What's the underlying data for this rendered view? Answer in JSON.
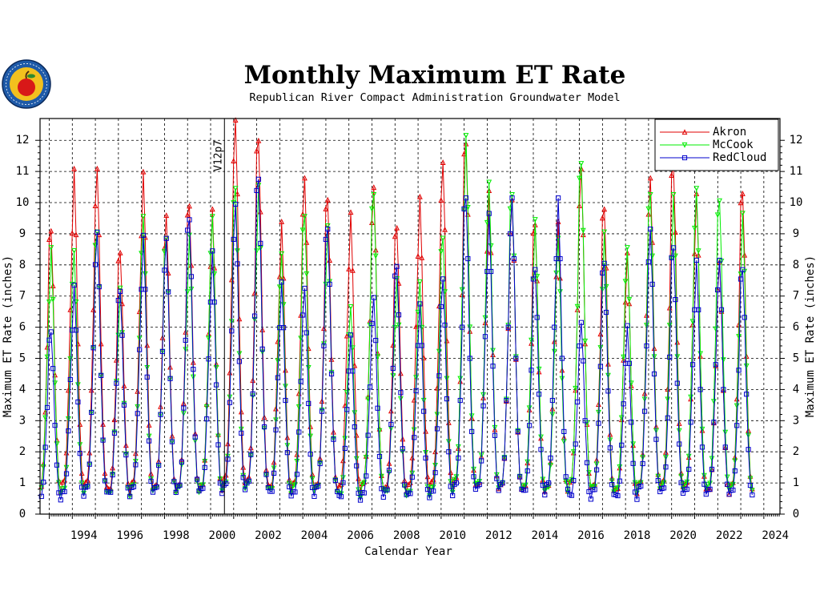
{
  "chart_data": {
    "type": "line",
    "title": "Monthly Maximum ET Rate",
    "subtitle": "Republican River Compact Administration Groundwater Model",
    "xlabel": "Calendar Year",
    "ylabel": "Maximum ET Rate (inches)",
    "xlim": [
      1992.6,
      2024.7
    ],
    "ylim": [
      0,
      12.7
    ],
    "x_ticks": [
      "1994",
      "1996",
      "1998",
      "2000",
      "2002",
      "2004",
      "2006",
      "2008",
      "2010",
      "2012",
      "2014",
      "2016",
      "2018",
      "2020",
      "2022",
      "2024"
    ],
    "y_ticks": [
      "0",
      "1",
      "2",
      "3",
      "4",
      "5",
      "6",
      "7",
      "8",
      "9",
      "10",
      "11",
      "12"
    ],
    "grid": true,
    "legend_position": "top-right",
    "annotation": {
      "text": "V12p7",
      "x": 2000.6
    },
    "x_start_year": 1992,
    "series": [
      {
        "name": "Akron",
        "color": "#e00000",
        "marker": "triangle-up",
        "peaks": [
          9.0,
          11.0,
          11.0,
          8.3,
          10.9,
          9.5,
          9.8,
          9.7,
          12.6,
          11.9,
          9.3,
          10.7,
          10.0,
          9.6,
          10.4,
          9.1,
          10.1,
          11.2,
          11.8,
          10.3,
          10.0,
          9.2,
          9.3,
          11.0,
          9.7,
          8.3,
          10.7,
          11.1,
          10.2,
          8.0,
          10.2
        ]
      },
      {
        "name": "McCook",
        "color": "#00ee00",
        "marker": "triangle-down",
        "peaks": [
          8.3,
          8.2,
          8.8,
          7.0,
          9.3,
          8.6,
          8.7,
          9.3,
          10.2,
          10.3,
          8.1,
          9.3,
          9.0,
          6.4,
          10.0,
          7.3,
          7.2,
          8.6,
          11.9,
          10.4,
          10.0,
          9.2,
          8.6,
          11.0,
          8.8,
          8.3,
          10.0,
          10.0,
          10.2,
          9.8,
          9.4
        ]
      },
      {
        "name": "RedCloud",
        "color": "#0000cc",
        "marker": "square",
        "peaks": [
          5.7,
          7.2,
          8.9,
          7.0,
          8.8,
          8.7,
          9.3,
          8.3,
          9.8,
          10.6,
          7.3,
          7.1,
          9.0,
          5.6,
          6.8,
          7.8,
          6.6,
          7.4,
          10.0,
          9.5,
          10.0,
          7.7,
          10.0,
          6.0,
          7.9,
          5.9,
          9.0,
          8.4,
          8.0,
          8.0,
          7.7
        ]
      }
    ]
  }
}
